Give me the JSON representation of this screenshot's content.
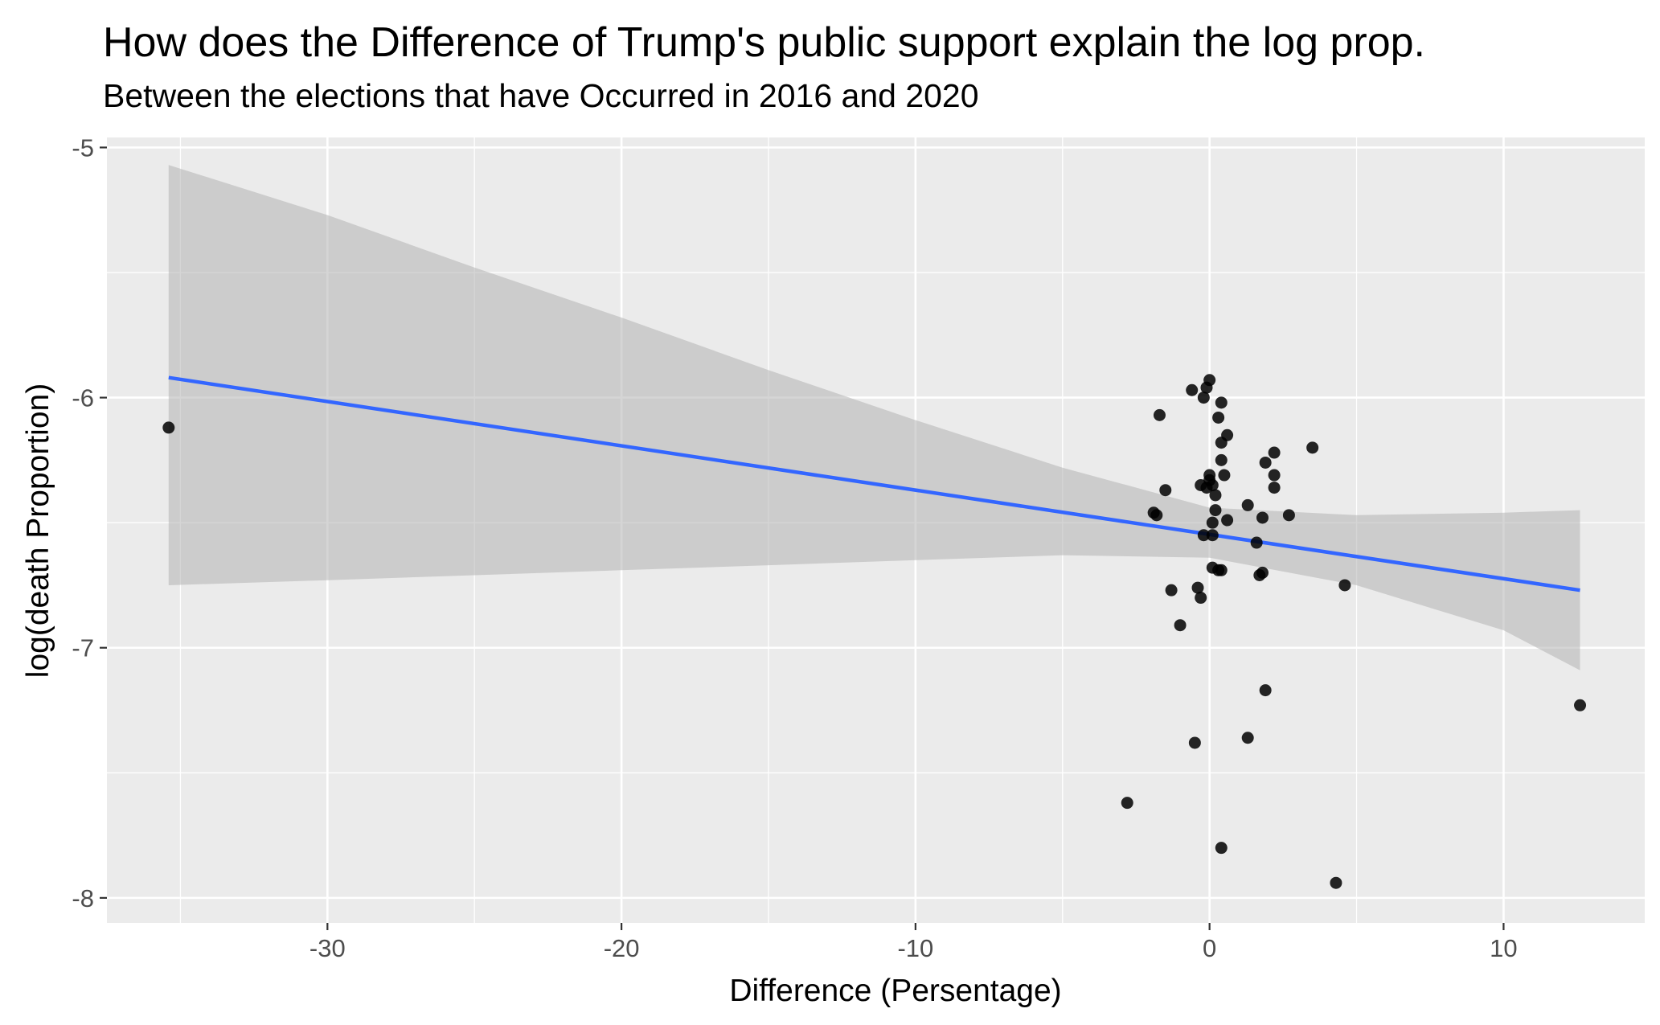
{
  "chart_data": {
    "type": "scatter",
    "title": "How does the Difference of Trump's public support explain the log prop.",
    "subtitle": "Between the elections that have Occurred in 2016 and 2020",
    "xlabel": "Difference (Persentage)",
    "ylabel": "log(death Proportion)",
    "xlim": [
      -37.5,
      14.8
    ],
    "ylim": [
      -8.1,
      -4.96
    ],
    "x_ticks": [
      -30,
      -20,
      -10,
      0,
      10
    ],
    "x_tick_labels": [
      "-30",
      "-20",
      "-10",
      "0",
      "10"
    ],
    "y_ticks": [
      -8,
      -7,
      -6,
      -5
    ],
    "y_tick_labels": [
      "-8",
      "-7",
      "-6",
      "-5"
    ],
    "grid": true,
    "colors": {
      "panel": "#ebebeb",
      "grid": "#ffffff",
      "points": "#000000",
      "fit_line": "#3366ff",
      "confidence_band": "#b3b3b3"
    },
    "points": [
      {
        "x": -35.4,
        "y": -6.12
      },
      {
        "x": -2.8,
        "y": -7.62
      },
      {
        "x": -1.9,
        "y": -6.46
      },
      {
        "x": -1.8,
        "y": -6.47
      },
      {
        "x": -1.7,
        "y": -6.07
      },
      {
        "x": -1.5,
        "y": -6.37
      },
      {
        "x": -1.3,
        "y": -6.77
      },
      {
        "x": -1.0,
        "y": -6.91
      },
      {
        "x": -0.6,
        "y": -5.97
      },
      {
        "x": -0.5,
        "y": -7.38
      },
      {
        "x": -0.4,
        "y": -6.76
      },
      {
        "x": -0.3,
        "y": -6.35
      },
      {
        "x": -0.3,
        "y": -6.8
      },
      {
        "x": -0.2,
        "y": -6.0
      },
      {
        "x": -0.2,
        "y": -6.55
      },
      {
        "x": -0.1,
        "y": -6.36
      },
      {
        "x": -0.1,
        "y": -5.96
      },
      {
        "x": 0.0,
        "y": -6.31
      },
      {
        "x": 0.0,
        "y": -5.93
      },
      {
        "x": 0.0,
        "y": -6.33
      },
      {
        "x": 0.1,
        "y": -6.35
      },
      {
        "x": 0.1,
        "y": -6.5
      },
      {
        "x": 0.1,
        "y": -6.55
      },
      {
        "x": 0.1,
        "y": -6.68
      },
      {
        "x": 0.2,
        "y": -6.45
      },
      {
        "x": 0.2,
        "y": -6.39
      },
      {
        "x": 0.3,
        "y": -6.08
      },
      {
        "x": 0.3,
        "y": -6.69
      },
      {
        "x": 0.4,
        "y": -6.25
      },
      {
        "x": 0.4,
        "y": -6.18
      },
      {
        "x": 0.4,
        "y": -6.69
      },
      {
        "x": 0.4,
        "y": -7.8
      },
      {
        "x": 0.4,
        "y": -6.02
      },
      {
        "x": 0.5,
        "y": -6.31
      },
      {
        "x": 0.6,
        "y": -6.49
      },
      {
        "x": 0.6,
        "y": -6.15
      },
      {
        "x": 1.3,
        "y": -7.36
      },
      {
        "x": 1.3,
        "y": -6.43
      },
      {
        "x": 1.6,
        "y": -6.58
      },
      {
        "x": 1.7,
        "y": -6.71
      },
      {
        "x": 1.8,
        "y": -6.7
      },
      {
        "x": 1.8,
        "y": -6.48
      },
      {
        "x": 1.9,
        "y": -7.17
      },
      {
        "x": 1.9,
        "y": -6.26
      },
      {
        "x": 2.2,
        "y": -6.22
      },
      {
        "x": 2.2,
        "y": -6.31
      },
      {
        "x": 2.2,
        "y": -6.36
      },
      {
        "x": 2.7,
        "y": -6.47
      },
      {
        "x": 3.5,
        "y": -6.2
      },
      {
        "x": 4.3,
        "y": -7.94
      },
      {
        "x": 4.6,
        "y": -6.75
      },
      {
        "x": 12.6,
        "y": -7.23
      }
    ],
    "fit_line": {
      "x": [
        -35.4,
        12.6
      ],
      "y": [
        -5.92,
        -6.77
      ]
    },
    "confidence_band": {
      "x": [
        -35.4,
        -30,
        -25,
        -20,
        -15,
        -10,
        -5,
        0,
        5,
        10,
        12.6
      ],
      "lower": [
        -6.75,
        -6.73,
        -6.71,
        -6.69,
        -6.67,
        -6.65,
        -6.63,
        -6.64,
        -6.75,
        -6.93,
        -7.09
      ],
      "upper": [
        -5.07,
        -5.27,
        -5.48,
        -5.68,
        -5.89,
        -6.09,
        -6.28,
        -6.44,
        -6.47,
        -6.46,
        -6.45
      ]
    }
  }
}
